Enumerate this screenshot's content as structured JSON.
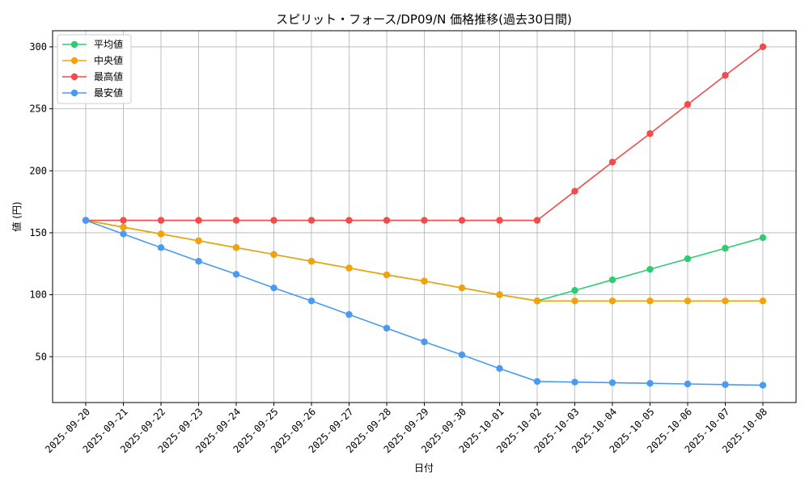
{
  "chart_data": {
    "type": "line",
    "title": "スピリット・フォース/DP09/N 価格推移(過去30日間)",
    "xlabel": "日付",
    "ylabel": "値 (円)",
    "categories": [
      "2025-09-20",
      "2025-09-21",
      "2025-09-22",
      "2025-09-23",
      "2025-09-24",
      "2025-09-25",
      "2025-09-26",
      "2025-09-27",
      "2025-09-28",
      "2025-09-29",
      "2025-09-30",
      "2025-10-01",
      "2025-10-02",
      "2025-10-03",
      "2025-10-04",
      "2025-10-05",
      "2025-10-06",
      "2025-10-07",
      "2025-10-08"
    ],
    "ylim": [
      13,
      313
    ],
    "yticks": [
      50,
      100,
      150,
      200,
      250,
      300
    ],
    "grid": true,
    "legend_position": "top-left",
    "series": [
      {
        "name": "平均値",
        "color": "#2ecc71",
        "values": [
          160,
          154.5,
          149,
          143.5,
          138,
          132.5,
          127,
          121.5,
          116,
          111,
          105.5,
          100,
          95,
          103.5,
          112,
          120.5,
          129,
          137.5,
          146
        ]
      },
      {
        "name": "中央値",
        "color": "#f5a20a",
        "values": [
          160,
          154.5,
          149,
          143.5,
          138,
          132.5,
          127,
          121.5,
          116,
          111,
          105.5,
          100,
          95,
          95,
          95,
          95,
          95,
          95,
          95
        ]
      },
      {
        "name": "最高値",
        "color": "#f44a4a",
        "values": [
          160,
          160,
          160,
          160,
          160,
          160,
          160,
          160,
          160,
          160,
          160,
          160,
          160,
          183.5,
          207,
          230,
          253.5,
          277,
          300
        ]
      },
      {
        "name": "最安値",
        "color": "#4a9af4",
        "values": [
          160,
          149,
          138,
          127,
          116.5,
          105.5,
          95,
          84,
          73,
          62,
          51.5,
          40.5,
          30,
          29.5,
          29,
          28.5,
          28,
          27.5,
          27
        ]
      }
    ]
  }
}
